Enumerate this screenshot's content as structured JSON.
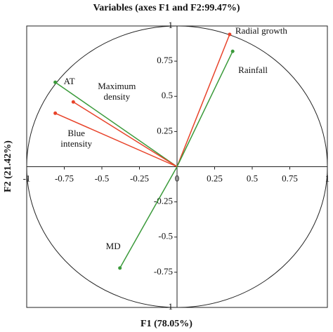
{
  "chart_data": {
    "type": "vector",
    "title": "Variables (axes F1 and F2:99.47%)",
    "x_label": "F1 (78.05%)",
    "y_label": "F2 (21.42%)",
    "xlim": [
      -1,
      1
    ],
    "ylim": [
      -1,
      1
    ],
    "xticks": [
      -1,
      -0.75,
      -0.5,
      -0.25,
      0,
      0.25,
      0.5,
      0.75,
      1
    ],
    "yticks": [
      -1,
      -0.75,
      -0.5,
      -0.25,
      0.25,
      0.5,
      0.75,
      1
    ],
    "series": [
      {
        "name": "Radial growth",
        "color": "#e8432a",
        "x": 0.35,
        "y": 0.94
      },
      {
        "name": "Rainfall",
        "color": "#3a9a3a",
        "x": 0.37,
        "y": 0.82
      },
      {
        "name": "AT",
        "color": "#3a9a3a",
        "x": -0.81,
        "y": 0.6
      },
      {
        "name": "Maximum density",
        "color": "#e8432a",
        "x": -0.69,
        "y": 0.46
      },
      {
        "name": "Blue intensity",
        "color": "#e8432a",
        "x": -0.81,
        "y": 0.38
      },
      {
        "name": "MD",
        "color": "#3a9a3a",
        "x": -0.38,
        "y": -0.72
      }
    ]
  }
}
